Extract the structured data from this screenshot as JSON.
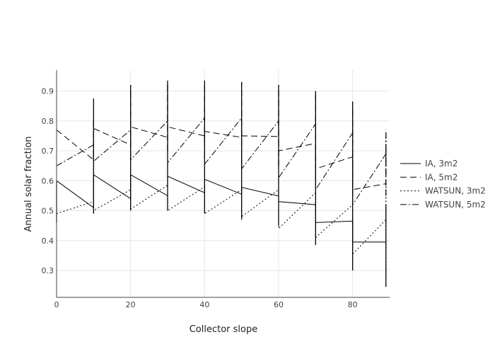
{
  "chart_data": {
    "type": "line",
    "title": "",
    "xlabel": "Collector slope",
    "ylabel": "Annual solar fraction",
    "xlim": [
      0,
      90
    ],
    "ylim": [
      0.21,
      0.97
    ],
    "x_ticks": [
      0,
      20,
      40,
      60,
      80
    ],
    "y_ticks": [
      0.3,
      0.4,
      0.5,
      0.6,
      0.7,
      0.8,
      0.9
    ],
    "grid": true,
    "legend_position": "right",
    "line_color": "#000000",
    "series": [
      {
        "name": "IA, 3m2",
        "dash": "solid",
        "points": [
          [
            0,
            0.6
          ],
          [
            10,
            0.51
          ],
          [
            10,
            0.62
          ],
          [
            20,
            0.54
          ],
          [
            20,
            0.62
          ],
          [
            30,
            0.55
          ],
          [
            30,
            0.615
          ],
          [
            40,
            0.56
          ],
          [
            40,
            0.605
          ],
          [
            50,
            0.555
          ],
          [
            50,
            0.578
          ],
          [
            60,
            0.549
          ],
          [
            60,
            0.53
          ],
          [
            70,
            0.52
          ],
          [
            70,
            0.46
          ],
          [
            80,
            0.465
          ],
          [
            80,
            0.395
          ],
          [
            89,
            0.395
          ]
        ],
        "vertical_ranges": [
          [
            0,
            0.46,
            0.6
          ],
          [
            10,
            0.49,
            0.875
          ],
          [
            20,
            0.5,
            0.92
          ],
          [
            30,
            0.5,
            0.935
          ],
          [
            40,
            0.49,
            0.935
          ],
          [
            50,
            0.47,
            0.93
          ],
          [
            60,
            0.45,
            0.92
          ],
          [
            70,
            0.385,
            0.9
          ],
          [
            80,
            0.3,
            0.865
          ],
          [
            89,
            0.245,
            0.52
          ]
        ]
      },
      {
        "name": "IA, 5m2",
        "dash": "dash",
        "points": [
          [
            0,
            0.77
          ],
          [
            10,
            0.67
          ],
          [
            10,
            0.775
          ],
          [
            20,
            0.72
          ],
          [
            20,
            0.78
          ],
          [
            30,
            0.745
          ],
          [
            30,
            0.78
          ],
          [
            40,
            0.75
          ],
          [
            40,
            0.765
          ],
          [
            50,
            0.745
          ],
          [
            50,
            0.75
          ],
          [
            60,
            0.748
          ],
          [
            60,
            0.7
          ],
          [
            70,
            0.725
          ],
          [
            70,
            0.64
          ],
          [
            80,
            0.68
          ],
          [
            80,
            0.57
          ],
          [
            89,
            0.59
          ]
        ],
        "vertical_ranges": [
          [
            10,
            0.68,
            0.8
          ],
          [
            20,
            0.68,
            0.92
          ],
          [
            30,
            0.7,
            0.93
          ],
          [
            40,
            0.73,
            0.925
          ],
          [
            50,
            0.65,
            0.93
          ],
          [
            60,
            0.65,
            0.92
          ],
          [
            70,
            0.6,
            0.9
          ],
          [
            80,
            0.55,
            0.85
          ],
          [
            89,
            0.55,
            0.72
          ]
        ]
      },
      {
        "name": "WATSUN, 3m2",
        "dash": "dot",
        "points": [
          [
            0,
            0.49
          ],
          [
            10,
            0.53
          ],
          [
            10,
            0.5
          ],
          [
            20,
            0.57
          ],
          [
            20,
            0.505
          ],
          [
            30,
            0.585
          ],
          [
            30,
            0.5
          ],
          [
            40,
            0.58
          ],
          [
            40,
            0.49
          ],
          [
            50,
            0.57
          ],
          [
            50,
            0.48
          ],
          [
            60,
            0.57
          ],
          [
            60,
            0.44
          ],
          [
            70,
            0.56
          ],
          [
            70,
            0.41
          ],
          [
            80,
            0.52
          ],
          [
            80,
            0.355
          ],
          [
            89,
            0.47
          ]
        ],
        "vertical_ranges": [
          [
            89,
            0.28,
            0.75
          ]
        ]
      },
      {
        "name": "WATSUN, 5m2",
        "dash": "dashdot",
        "points": [
          [
            0,
            0.65
          ],
          [
            10,
            0.72
          ],
          [
            10,
            0.665
          ],
          [
            20,
            0.77
          ],
          [
            20,
            0.67
          ],
          [
            30,
            0.8
          ],
          [
            30,
            0.66
          ],
          [
            40,
            0.81
          ],
          [
            40,
            0.655
          ],
          [
            50,
            0.81
          ],
          [
            50,
            0.64
          ],
          [
            60,
            0.8
          ],
          [
            60,
            0.61
          ],
          [
            70,
            0.79
          ],
          [
            70,
            0.57
          ],
          [
            80,
            0.76
          ],
          [
            80,
            0.52
          ],
          [
            89,
            0.69
          ]
        ],
        "vertical_ranges": [
          [
            89,
            0.62,
            0.77
          ]
        ]
      }
    ]
  }
}
